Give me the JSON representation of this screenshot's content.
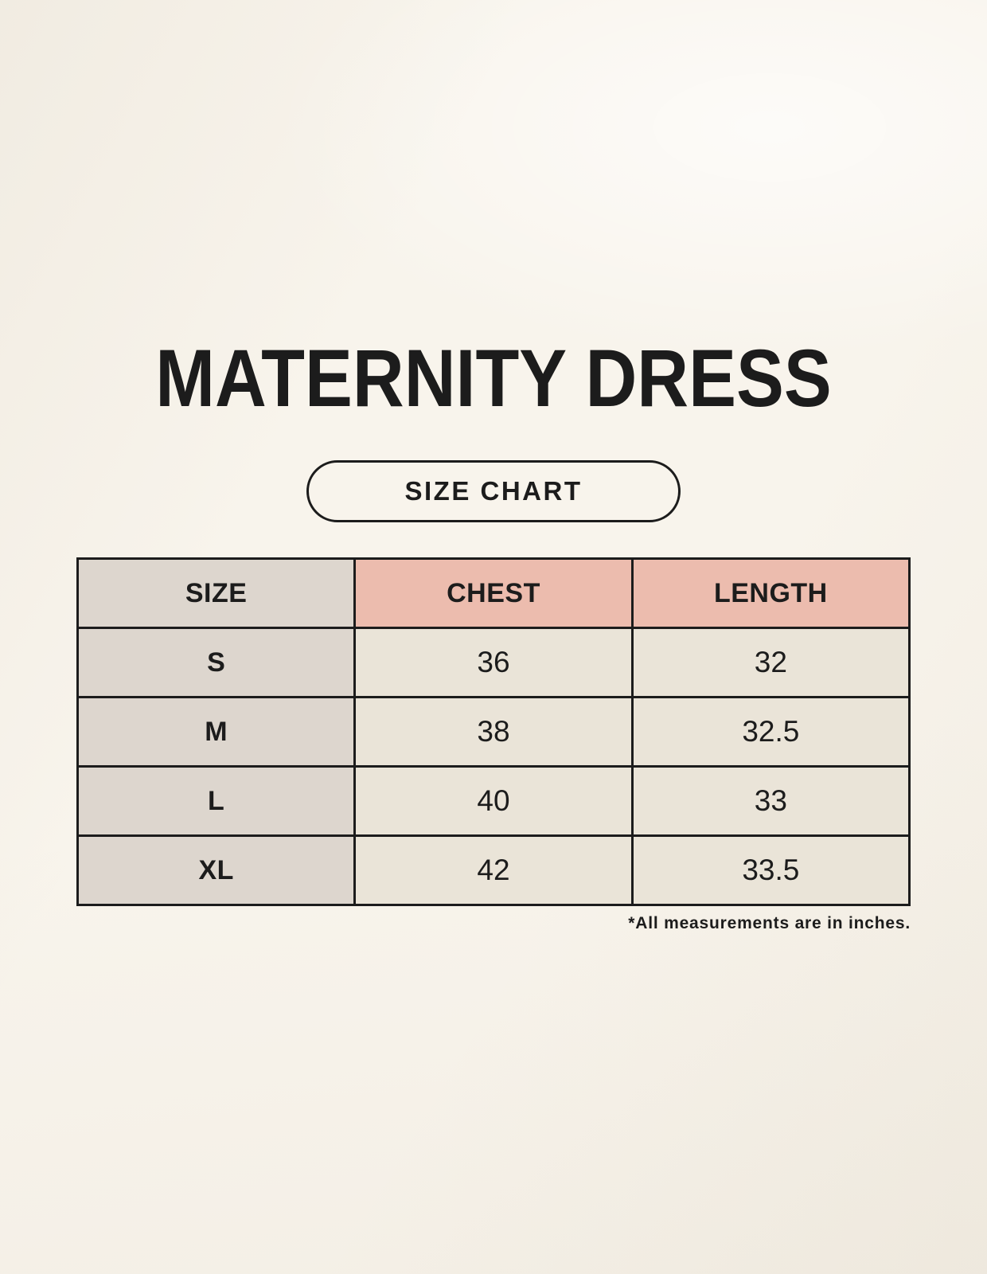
{
  "page": {
    "title": "MATERNITY DRESS",
    "size_chart_button": "SIZE CHART",
    "footnote": "*All measurements are in inches."
  },
  "table": {
    "columns": [
      "SIZE",
      "CHEST",
      "LENGTH"
    ],
    "rows": [
      {
        "size": "S",
        "chest": "36",
        "length": "32"
      },
      {
        "size": "M",
        "chest": "38",
        "length": "32.5"
      },
      {
        "size": "L",
        "chest": "40",
        "length": "33"
      },
      {
        "size": "XL",
        "chest": "42",
        "length": "33.5"
      }
    ]
  },
  "colors": {
    "background": "#f8f4ec",
    "header_pink": "#ecbcae",
    "cell_gray": "#ddd6ce",
    "cell_cream": "#eae4d8",
    "border": "#1c1c1c",
    "text": "#1c1c1c"
  }
}
